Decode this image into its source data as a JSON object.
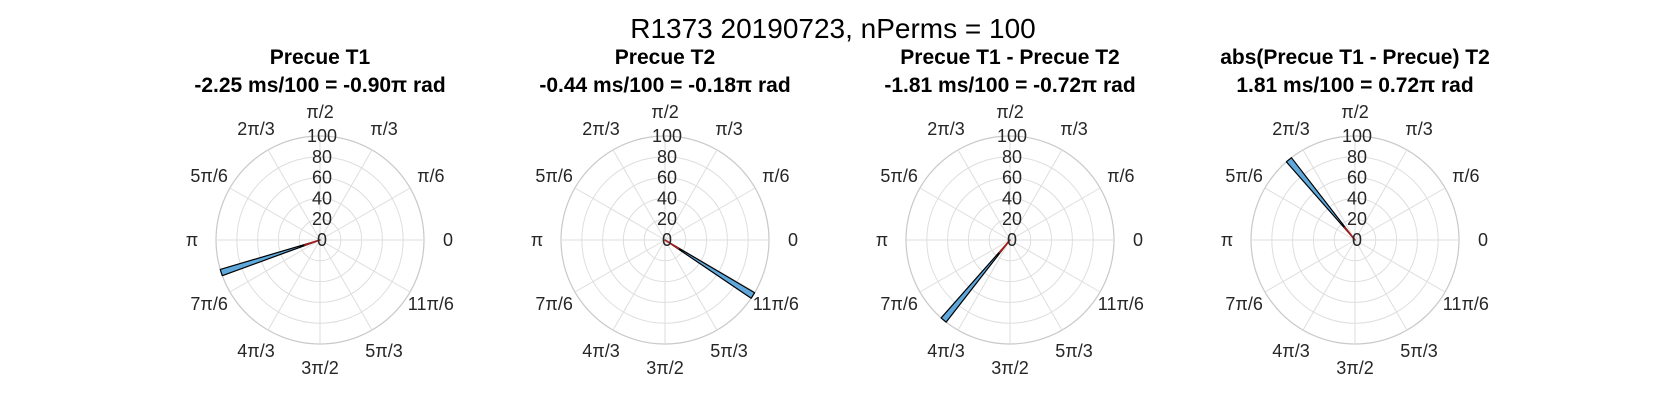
{
  "suptitle": "R1373 20190723, nPerms = 100",
  "chart_data": [
    {
      "type": "polar-histogram",
      "title_line1": "Precue T1",
      "title_line2": "-2.25 ms/100 = -0.90π rad",
      "rlim": [
        0,
        100
      ],
      "rticks": [
        0,
        20,
        40,
        60,
        80,
        100
      ],
      "theta_ticks": [
        "0",
        "π/6",
        "π/3",
        "π/2",
        "2π/3",
        "5π/6",
        "π",
        "7π/6",
        "4π/3",
        "3π/2",
        "5π/3",
        "11π/6"
      ],
      "bars": [
        {
          "theta_center_rad": 3.46,
          "width_rad": 0.063,
          "value": 100
        }
      ],
      "mean_angle_rad": 3.46,
      "bar_color": "#5fa8dc",
      "mean_line_color": "#b01a1a"
    },
    {
      "type": "polar-histogram",
      "title_line1": "Precue T2",
      "title_line2": "-0.44 ms/100 = -0.18π rad",
      "rlim": [
        0,
        100
      ],
      "rticks": [
        0,
        20,
        40,
        60,
        80,
        100
      ],
      "theta_ticks": [
        "0",
        "π/6",
        "π/3",
        "π/2",
        "2π/3",
        "5π/6",
        "π",
        "7π/6",
        "4π/3",
        "3π/2",
        "5π/3",
        "11π/6"
      ],
      "bars": [
        {
          "theta_center_rad": 5.72,
          "width_rad": 0.063,
          "value": 100
        }
      ],
      "mean_angle_rad": 5.72,
      "bar_color": "#5fa8dc",
      "mean_line_color": "#b01a1a"
    },
    {
      "type": "polar-histogram",
      "title_line1": "Precue T1 - Precue T2",
      "title_line2": "-1.81 ms/100 = -0.72π rad",
      "rlim": [
        0,
        100
      ],
      "rticks": [
        0,
        20,
        40,
        60,
        80,
        100
      ],
      "theta_ticks": [
        "0",
        "π/6",
        "π/3",
        "π/2",
        "2π/3",
        "5π/6",
        "π",
        "7π/6",
        "4π/3",
        "3π/2",
        "5π/3",
        "11π/6"
      ],
      "bars": [
        {
          "theta_center_rad": 4.02,
          "width_rad": 0.063,
          "value": 100
        }
      ],
      "mean_angle_rad": 4.02,
      "bar_color": "#5fa8dc",
      "mean_line_color": "#b01a1a"
    },
    {
      "type": "polar-histogram",
      "title_line1": "abs(Precue T1 - Precue) T2",
      "title_line2": "1.81 ms/100 = 0.72π rad",
      "rlim": [
        0,
        100
      ],
      "rticks": [
        0,
        20,
        40,
        60,
        80,
        100
      ],
      "theta_ticks": [
        "0",
        "π/6",
        "π/3",
        "π/2",
        "2π/3",
        "5π/6",
        "π",
        "7π/6",
        "4π/3",
        "3π/2",
        "5π/3",
        "11π/6"
      ],
      "bars": [
        {
          "theta_center_rad": 2.26,
          "width_rad": 0.063,
          "value": 100
        }
      ],
      "mean_angle_rad": 2.26,
      "bar_color": "#5fa8dc",
      "mean_line_color": "#b01a1a"
    }
  ]
}
